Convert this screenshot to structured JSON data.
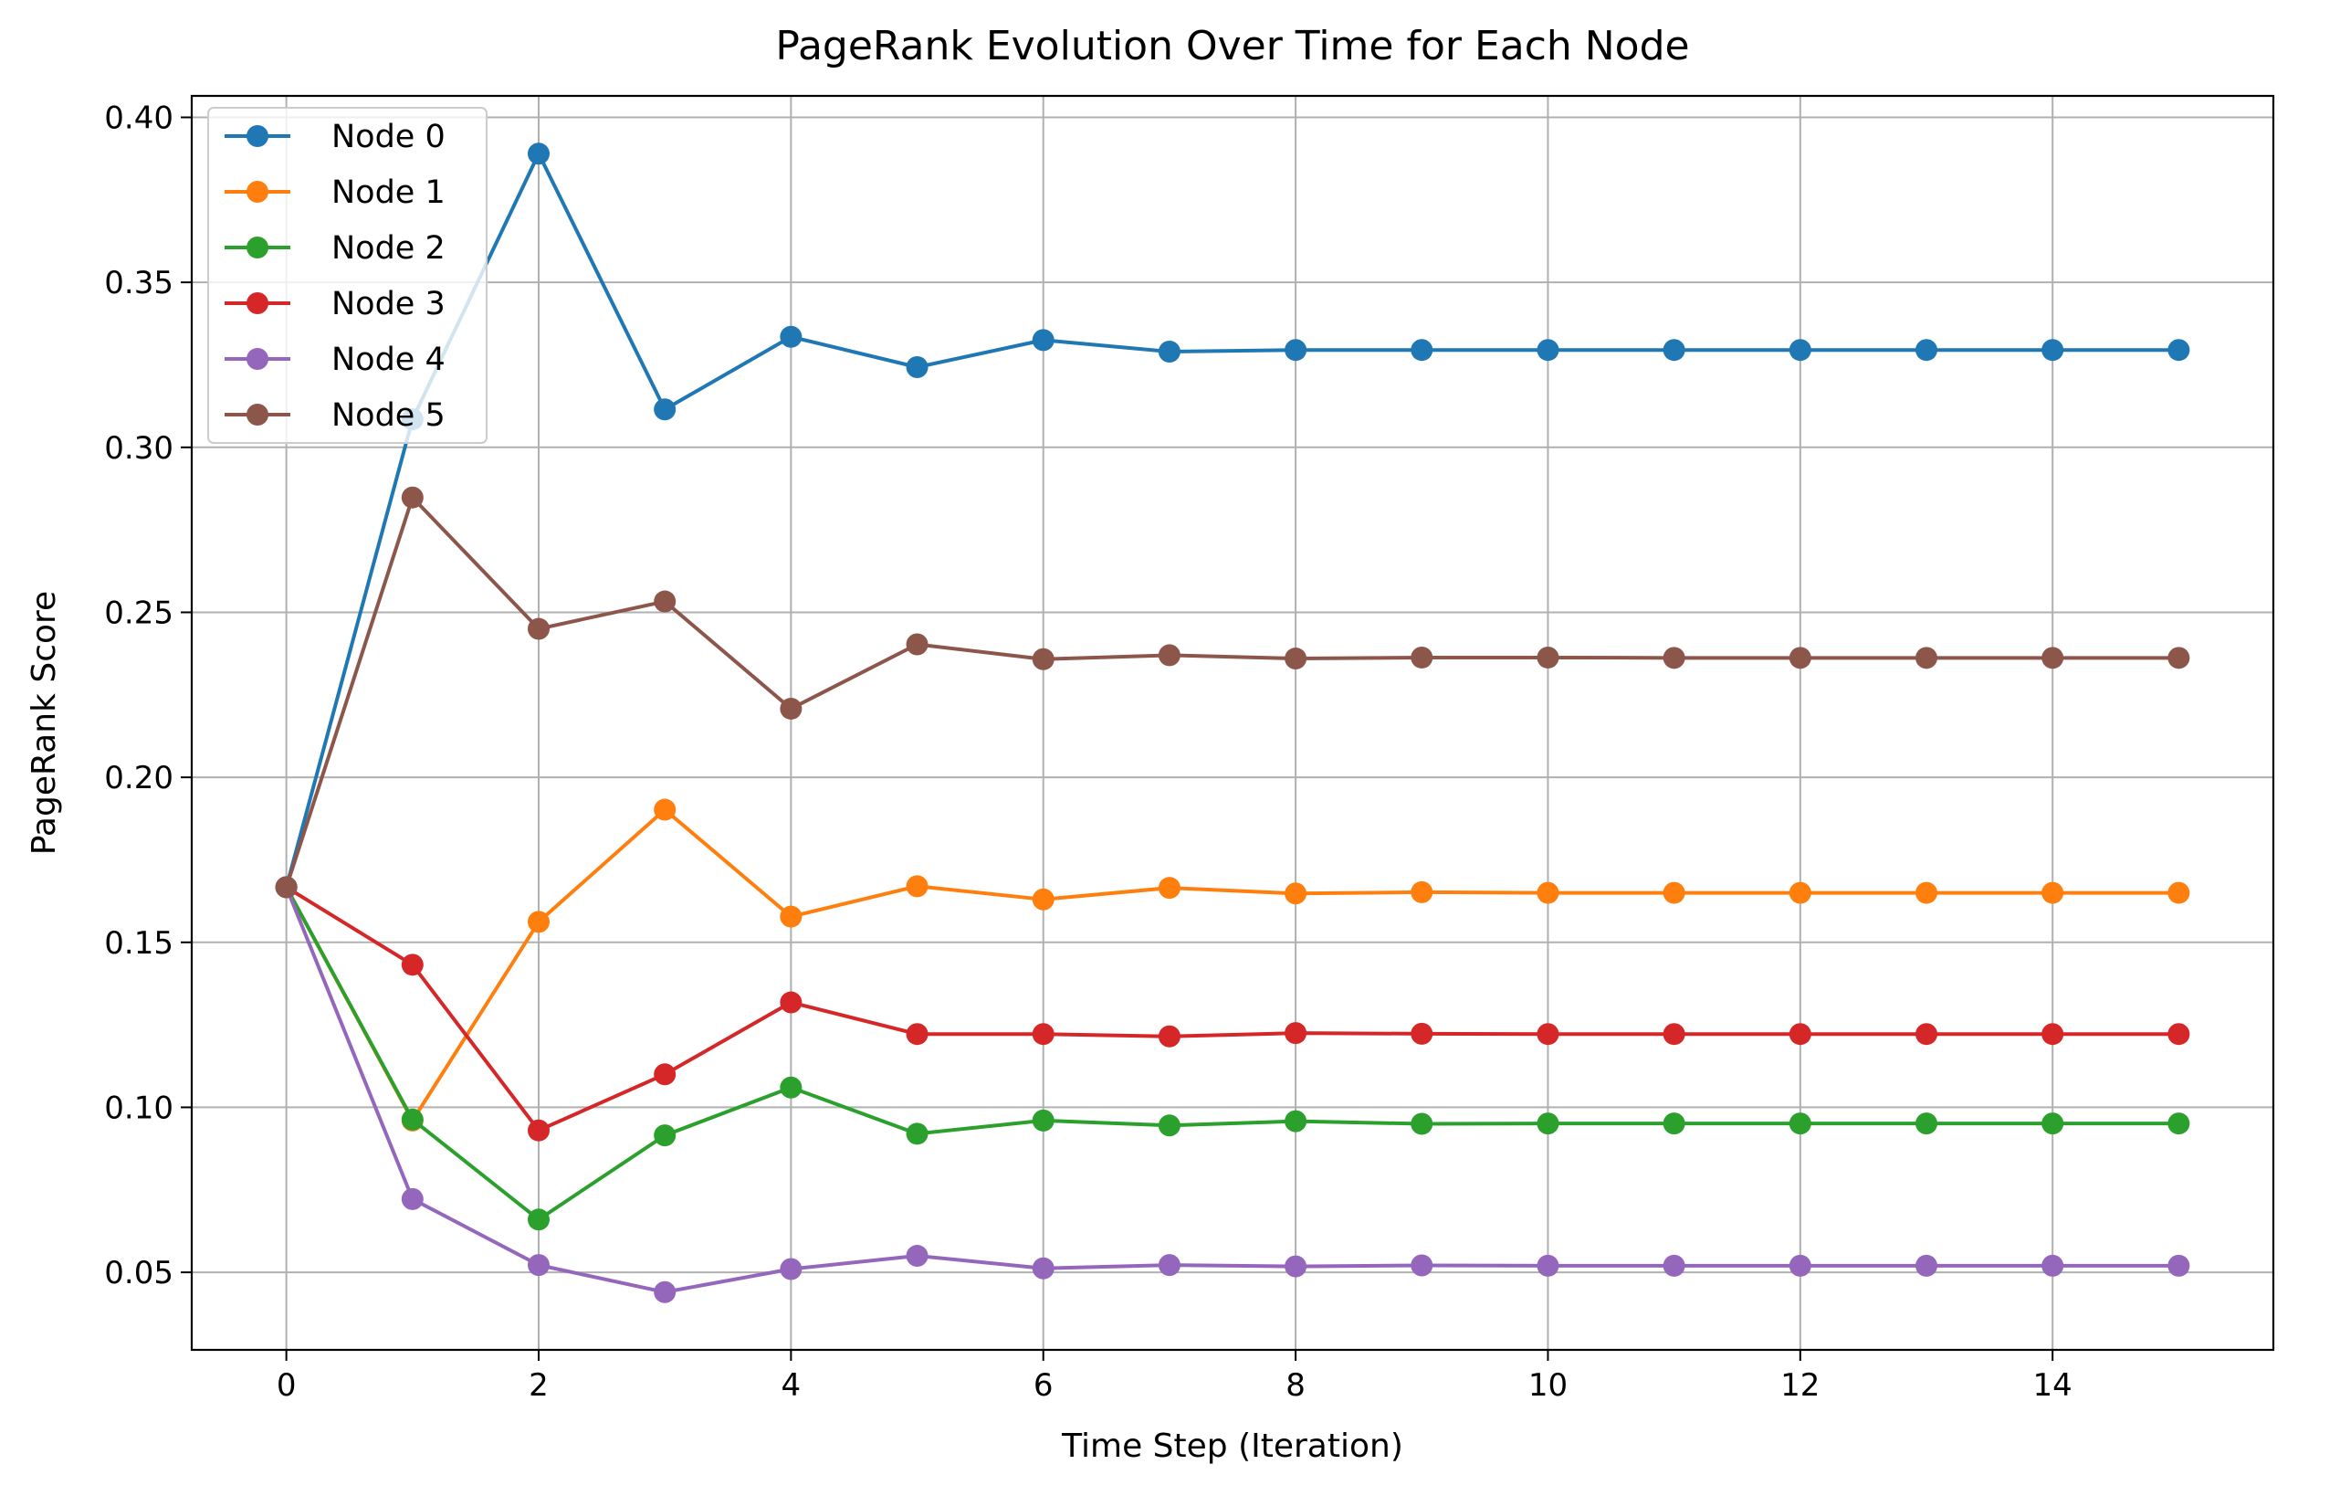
{
  "chart_data": {
    "type": "line",
    "title": "PageRank Evolution Over Time for Each Node",
    "xlabel": "Time Step (Iteration)",
    "ylabel": "PageRank Score",
    "xlim": [
      -0.75,
      15.75
    ],
    "ylim": [
      0.0265,
      0.4065
    ],
    "xticks": [
      0,
      2,
      4,
      6,
      8,
      10,
      12,
      14
    ],
    "xtick_labels": [
      "0",
      "2",
      "4",
      "6",
      "8",
      "10",
      "12",
      "14"
    ],
    "yticks": [
      0.05,
      0.1,
      0.15,
      0.2,
      0.25,
      0.3,
      0.35,
      0.4
    ],
    "ytick_labels": [
      "0.05",
      "0.10",
      "0.15",
      "0.20",
      "0.25",
      "0.30",
      "0.35",
      "0.40"
    ],
    "grid": true,
    "legend_position": "top-left",
    "marker": "circle",
    "x": [
      0,
      1,
      2,
      3,
      4,
      5,
      6,
      7,
      8,
      9,
      10,
      11,
      12,
      13,
      14,
      15
    ],
    "series": [
      {
        "name": "Node 0",
        "color": "#1f77b4",
        "values": [
          0.1667,
          0.3085,
          0.389,
          0.3115,
          0.3335,
          0.3243,
          0.3325,
          0.329,
          0.3295,
          0.3295,
          0.3295,
          0.3295,
          0.3295,
          0.3295,
          0.3295,
          0.3295
        ]
      },
      {
        "name": "Node 1",
        "color": "#ff7f0e",
        "values": [
          0.1667,
          0.096,
          0.1562,
          0.1902,
          0.1578,
          0.167,
          0.163,
          0.1665,
          0.1648,
          0.1652,
          0.165,
          0.165,
          0.165,
          0.165,
          0.165,
          0.165
        ]
      },
      {
        "name": "Node 2",
        "color": "#2ca02c",
        "values": [
          0.1667,
          0.0963,
          0.066,
          0.0915,
          0.106,
          0.092,
          0.096,
          0.0945,
          0.0958,
          0.095,
          0.0951,
          0.0951,
          0.0951,
          0.0951,
          0.0951,
          0.0951
        ]
      },
      {
        "name": "Node 3",
        "color": "#d62728",
        "values": [
          0.1667,
          0.1432,
          0.093,
          0.11,
          0.1318,
          0.1222,
          0.1222,
          0.1215,
          0.1225,
          0.1223,
          0.1222,
          0.1222,
          0.1222,
          0.1222,
          0.1222,
          0.1222
        ]
      },
      {
        "name": "Node 4",
        "color": "#9467bd",
        "values": [
          0.1667,
          0.0722,
          0.0522,
          0.044,
          0.051,
          0.055,
          0.0512,
          0.0522,
          0.0518,
          0.0521,
          0.052,
          0.052,
          0.052,
          0.052,
          0.052,
          0.052
        ]
      },
      {
        "name": "Node 5",
        "color": "#8c564b",
        "values": [
          0.1667,
          0.2848,
          0.245,
          0.2533,
          0.2208,
          0.2403,
          0.2358,
          0.237,
          0.236,
          0.2363,
          0.2363,
          0.2362,
          0.2362,
          0.2362,
          0.2362,
          0.2362
        ]
      }
    ]
  }
}
